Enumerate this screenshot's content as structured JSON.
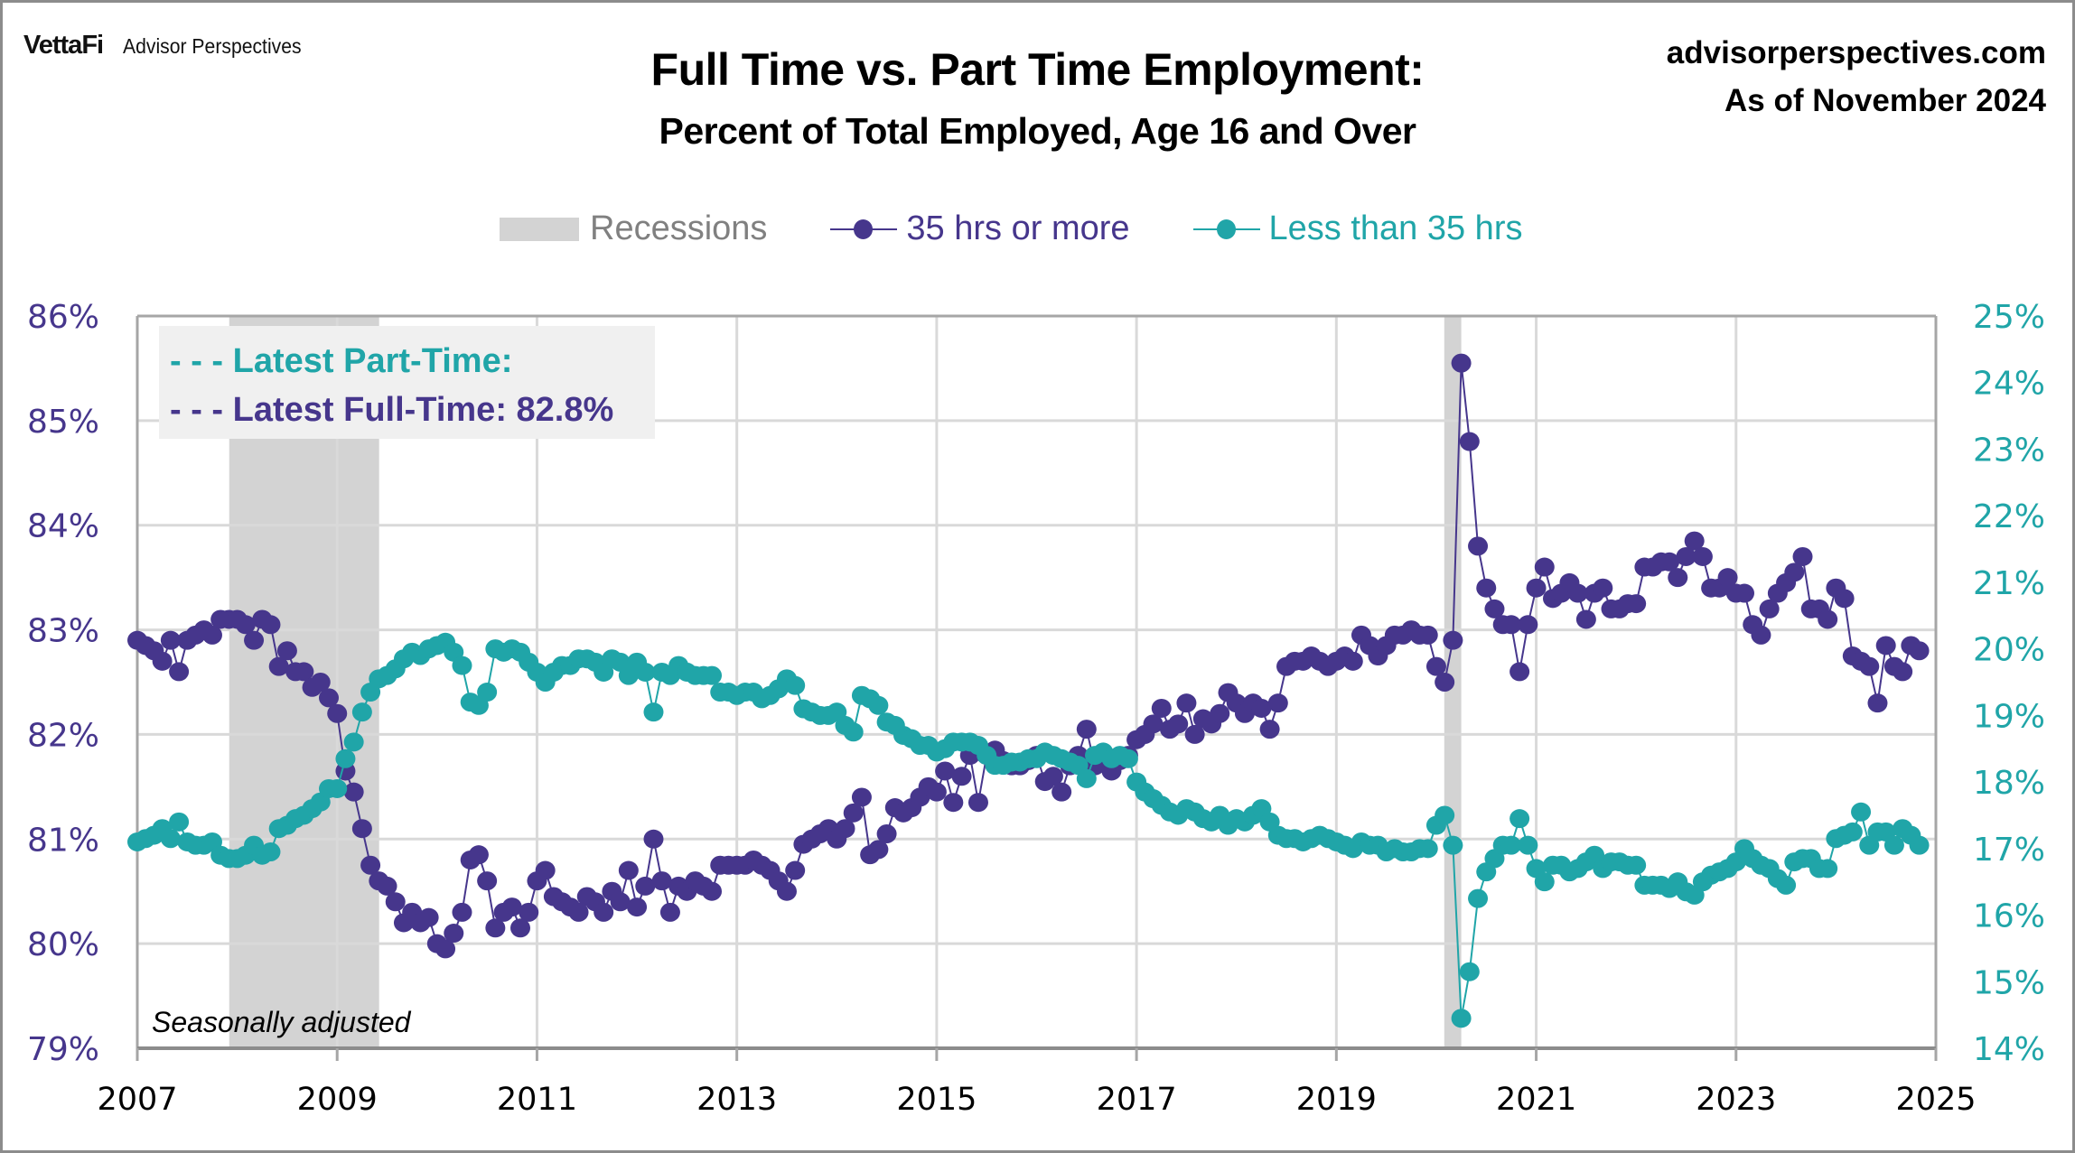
{
  "header": {
    "brand_logo": "VettaFi",
    "brand_name": "Advisor Perspectives",
    "site": "advisorperspectives.com",
    "as_of": "As of November 2024"
  },
  "colors": {
    "full_time": "#46368c",
    "part_time": "#20a5a8",
    "recession": "#d3d3d3",
    "grid": "#d9d9d9",
    "axis": "#a6a6a6",
    "annotation_bg": "#f0f0f0"
  },
  "annotation": {
    "part_time_label": "- - - Latest Part-Time:",
    "full_time_label": "- - - Latest Full-Time: 82.8%"
  },
  "note": "Seasonally adjusted",
  "chart_data": {
    "type": "line",
    "title": "Full Time vs. Part Time Employment:",
    "subtitle": "Percent of Total Employed, Age 16 and Over",
    "xlabel": "",
    "ylabel_left": "",
    "ylabel_right": "",
    "x_start": "2007-01",
    "x_end": "2024-11",
    "frequency": "monthly",
    "xlim": [
      2007,
      2025
    ],
    "x_ticks": [
      "2007",
      "2009",
      "2011",
      "2013",
      "2015",
      "2017",
      "2019",
      "2021",
      "2023",
      "2025"
    ],
    "ylim_left": [
      79,
      86
    ],
    "ylim_right": [
      14,
      25
    ],
    "y_ticks_left": [
      "79%",
      "80%",
      "81%",
      "82%",
      "83%",
      "84%",
      "85%",
      "86%"
    ],
    "y_ticks_right": [
      "14%",
      "15%",
      "16%",
      "17%",
      "18%",
      "19%",
      "20%",
      "21%",
      "22%",
      "23%",
      "24%",
      "25%"
    ],
    "grid": true,
    "legend": {
      "placement": "top-center",
      "entries": [
        "Recessions",
        "35 hrs or more",
        "Less than 35 hrs"
      ]
    },
    "recessions": [
      {
        "start": 2007.92,
        "end": 2009.42
      },
      {
        "start": 2020.08,
        "end": 2020.25
      }
    ],
    "series": [
      {
        "name": "35 hrs or more",
        "axis": "left",
        "values": [
          82.9,
          82.85,
          82.8,
          82.7,
          82.9,
          82.6,
          82.9,
          82.95,
          83.0,
          82.95,
          83.1,
          83.1,
          83.1,
          83.05,
          82.9,
          83.1,
          83.05,
          82.65,
          82.8,
          82.6,
          82.6,
          82.45,
          82.5,
          82.35,
          82.2,
          81.65,
          81.45,
          81.1,
          80.75,
          80.6,
          80.55,
          80.4,
          80.2,
          80.3,
          80.2,
          80.25,
          80.0,
          79.95,
          80.1,
          80.3,
          80.8,
          80.85,
          80.6,
          80.15,
          80.3,
          80.35,
          80.15,
          80.3,
          80.6,
          80.7,
          80.45,
          80.4,
          80.35,
          80.3,
          80.45,
          80.4,
          80.3,
          80.5,
          80.4,
          80.7,
          80.35,
          80.55,
          81.0,
          80.6,
          80.3,
          80.55,
          80.5,
          80.6,
          80.55,
          80.5,
          80.75,
          80.75,
          80.75,
          80.75,
          80.8,
          80.75,
          80.7,
          80.6,
          80.5,
          80.7,
          80.95,
          81.0,
          81.05,
          81.1,
          81.0,
          81.1,
          81.25,
          81.4,
          80.85,
          80.9,
          81.05,
          81.3,
          81.25,
          81.3,
          81.4,
          81.5,
          81.45,
          81.65,
          81.35,
          81.6,
          81.8,
          81.35,
          81.8,
          81.85,
          81.75,
          81.7,
          81.7,
          81.75,
          81.8,
          81.55,
          81.6,
          81.45,
          81.7,
          81.8,
          82.05,
          81.7,
          81.75,
          81.65,
          81.75,
          81.8,
          81.95,
          82.0,
          82.1,
          82.25,
          82.05,
          82.1,
          82.3,
          82.0,
          82.15,
          82.1,
          82.2,
          82.4,
          82.3,
          82.2,
          82.3,
          82.25,
          82.05,
          82.3,
          82.65,
          82.7,
          82.7,
          82.75,
          82.7,
          82.65,
          82.7,
          82.75,
          82.7,
          82.95,
          82.85,
          82.75,
          82.85,
          82.95,
          82.95,
          83.0,
          82.95,
          82.95,
          82.65,
          82.5,
          82.9,
          85.55,
          84.8,
          83.8,
          83.4,
          83.2,
          83.05,
          83.05,
          82.6,
          83.05,
          83.4,
          83.6,
          83.3,
          83.35,
          83.45,
          83.35,
          83.1,
          83.35,
          83.4,
          83.2,
          83.2,
          83.25,
          83.25,
          83.6,
          83.6,
          83.65,
          83.65,
          83.5,
          83.7,
          83.85,
          83.7,
          83.4,
          83.4,
          83.5,
          83.35,
          83.35,
          83.05,
          82.95,
          83.2,
          83.35,
          83.45,
          83.55,
          83.7,
          83.2,
          83.2,
          83.1,
          83.4,
          83.3,
          82.75,
          82.7,
          82.65,
          82.3,
          82.85,
          82.65,
          82.6,
          82.85,
          82.8
        ]
      },
      {
        "name": "Less than 35 hrs",
        "axis": "right",
        "values": [
          17.1,
          17.15,
          17.2,
          17.3,
          17.15,
          17.4,
          17.1,
          17.05,
          17.05,
          17.1,
          16.9,
          16.85,
          16.85,
          16.9,
          17.05,
          16.9,
          16.95,
          17.3,
          17.35,
          17.45,
          17.5,
          17.6,
          17.7,
          17.9,
          17.9,
          18.35,
          18.6,
          19.05,
          19.35,
          19.55,
          19.6,
          19.7,
          19.85,
          19.95,
          19.9,
          20.0,
          20.05,
          20.1,
          19.95,
          19.75,
          19.2,
          19.15,
          19.35,
          20.0,
          19.95,
          20.0,
          19.95,
          19.8,
          19.65,
          19.5,
          19.65,
          19.75,
          19.75,
          19.85,
          19.85,
          19.8,
          19.65,
          19.85,
          19.8,
          19.6,
          19.8,
          19.65,
          19.05,
          19.65,
          19.6,
          19.75,
          19.65,
          19.6,
          19.6,
          19.6,
          19.35,
          19.35,
          19.3,
          19.35,
          19.35,
          19.25,
          19.3,
          19.4,
          19.55,
          19.45,
          19.1,
          19.05,
          19.0,
          19.0,
          19.05,
          18.85,
          18.75,
          19.3,
          19.25,
          19.15,
          18.9,
          18.85,
          18.7,
          18.65,
          18.55,
          18.55,
          18.45,
          18.5,
          18.6,
          18.6,
          18.6,
          18.55,
          18.4,
          18.25,
          18.25,
          18.3,
          18.3,
          18.35,
          18.35,
          18.45,
          18.4,
          18.35,
          18.3,
          18.25,
          18.05,
          18.4,
          18.45,
          18.35,
          18.4,
          18.35,
          18.0,
          17.85,
          17.75,
          17.65,
          17.55,
          17.5,
          17.6,
          17.55,
          17.45,
          17.4,
          17.5,
          17.35,
          17.45,
          17.4,
          17.5,
          17.6,
          17.4,
          17.2,
          17.15,
          17.15,
          17.1,
          17.15,
          17.2,
          17.15,
          17.1,
          17.05,
          17.0,
          17.1,
          17.05,
          17.05,
          16.95,
          17.0,
          16.95,
          16.95,
          17.0,
          17.0,
          17.35,
          17.5,
          17.05,
          14.45,
          15.15,
          16.25,
          16.65,
          16.85,
          17.05,
          17.05,
          17.45,
          17.05,
          16.7,
          16.5,
          16.75,
          16.75,
          16.65,
          16.7,
          16.8,
          16.9,
          16.7,
          16.8,
          16.8,
          16.75,
          16.75,
          16.45,
          16.45,
          16.45,
          16.4,
          16.5,
          16.35,
          16.3,
          16.5,
          16.6,
          16.65,
          16.7,
          16.8,
          17.0,
          16.85,
          16.75,
          16.7,
          16.55,
          16.45,
          16.8,
          16.85,
          16.85,
          16.7,
          16.7,
          17.15,
          17.2,
          17.25,
          17.55,
          17.05,
          17.25,
          17.25,
          17.05,
          17.3,
          17.2,
          17.05
        ]
      }
    ],
    "annotations": [
      "- - - Latest Part-Time:",
      "- - - Latest Full-Time: 82.8%",
      "Seasonally adjusted"
    ]
  }
}
